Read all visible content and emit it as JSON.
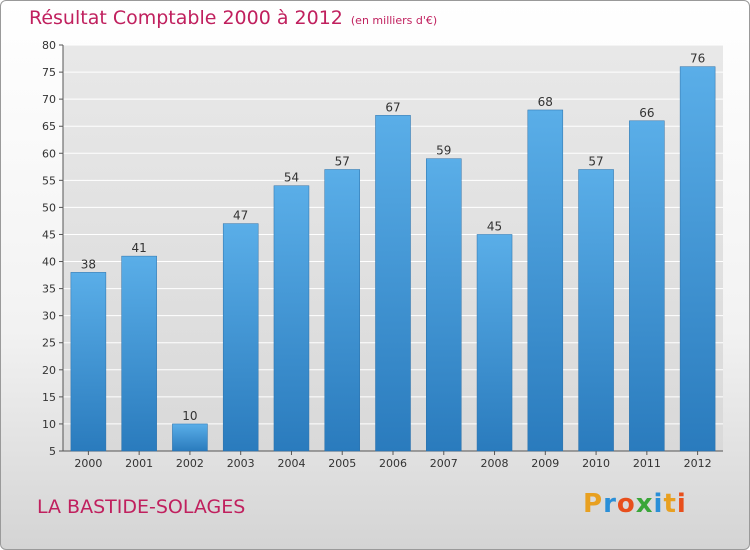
{
  "header": {
    "title": "Résultat Comptable 2000 à 2012",
    "subtitle": "(en milliers d'€)"
  },
  "footer": {
    "place": "LA BASTIDE-SOLAGES",
    "logo": "Proxiti"
  },
  "colors": {
    "title": "#c0205e",
    "bar_top": "#5aaee8",
    "bar_bottom": "#2a7bbd",
    "logo_letters": [
      "#e8a020",
      "#2a8fd8",
      "#e84f1c",
      "#3aa639",
      "#2a8fd8",
      "#e8a020",
      "#e84f1c"
    ]
  },
  "chart_data": {
    "type": "bar",
    "title": "Résultat Comptable 2000 à 2012",
    "subtitle": "(en milliers d'€)",
    "categories": [
      "2000",
      "2001",
      "2002",
      "2003",
      "2004",
      "2005",
      "2006",
      "2007",
      "2008",
      "2009",
      "2010",
      "2011",
      "2012"
    ],
    "values": [
      38,
      41,
      10,
      47,
      54,
      57,
      67,
      59,
      45,
      68,
      57,
      66,
      76
    ],
    "data_labels": [
      "38",
      "41",
      "10",
      "47",
      "54",
      "57",
      "67",
      "59",
      "45",
      "68",
      "57",
      "66",
      "76"
    ],
    "y_ticks": [
      "5",
      "10",
      "15",
      "20",
      "25",
      "30",
      "35",
      "40",
      "45",
      "50",
      "55",
      "60",
      "65",
      "70",
      "75",
      "80"
    ],
    "ylim": [
      5,
      80
    ],
    "grid": true,
    "legend": "none"
  }
}
